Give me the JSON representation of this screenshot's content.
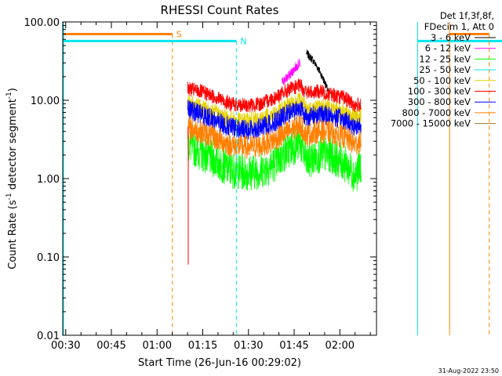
{
  "colors": {
    "background": "#ffffff",
    "axis": "#000000",
    "s_marker": "#ff7f00",
    "n_marker": "#00e5ee"
  },
  "chart_data": {
    "type": "line",
    "title": "RHESSI Count Rates",
    "xlabel": "Start Time (26-Jun-16 00:29:02)",
    "ylabel_main": "Count Rate (s",
    "ylabel_sup": "-1",
    "ylabel_tail": " detector segment",
    "ylabel_sup2": "-1",
    "ylabel_end": ")",
    "y_scale": "log",
    "ylim": [
      0.01,
      100.0
    ],
    "xlim": [
      "00:29:02",
      "02:12:00"
    ],
    "x_ticks": [
      "00:30",
      "00:45",
      "01:00",
      "01:15",
      "01:30",
      "01:45",
      "02:00"
    ],
    "y_ticks": [
      "100.00",
      "10.00",
      "1.00",
      "0.10",
      "0.01"
    ],
    "legend_header": [
      "Det 1f,3f,8f,",
      "FDecim 1, Att 0"
    ],
    "legend_placement": "outside-right",
    "series": [
      {
        "name": "3 - 6 keV",
        "color": "#000000",
        "x": [
          80.0,
          82.0,
          84.0,
          86.0,
          87.5
        ],
        "y": [
          40.0,
          33.0,
          25.0,
          17.0,
          12.0
        ]
      },
      {
        "name": "6 - 12 keV",
        "color": "#ff00ff",
        "x": [
          72.0,
          74.0,
          76.0,
          77.0,
          78.0
        ],
        "y": [
          17.0,
          20.0,
          25.0,
          28.0,
          30.0
        ]
      },
      {
        "name": "12 - 25 keV",
        "color": "#00ff00",
        "x": [
          41.0,
          45.0,
          50.0,
          55.0,
          60.0,
          65.0,
          70.0,
          74.0,
          78.0,
          80.0,
          84.0,
          88.0,
          93.0,
          96.0,
          98.0
        ],
        "y": [
          2.8,
          2.2,
          1.7,
          1.3,
          1.2,
          1.25,
          1.6,
          2.3,
          2.9,
          1.6,
          2.0,
          2.0,
          1.5,
          1.1,
          1.5
        ]
      },
      {
        "name": "25 - 50 keV",
        "color": "#00e5ee",
        "x": [],
        "y": []
      },
      {
        "name": "50 - 100 keV",
        "color": "#e6d000",
        "x": [
          41.0,
          45.0,
          50.0,
          55.0,
          60.0,
          65.0,
          70.0,
          74.0,
          78.0,
          80.0,
          84.0,
          88.0,
          93.0,
          96.0,
          98.0
        ],
        "y": [
          9.0,
          8.0,
          6.8,
          5.6,
          5.3,
          5.6,
          6.8,
          8.5,
          10.0,
          7.5,
          8.2,
          8.0,
          7.0,
          6.0,
          6.5
        ]
      },
      {
        "name": "100 - 300 keV",
        "color": "#ff0000",
        "x": [
          41.0,
          45.0,
          50.0,
          55.0,
          60.0,
          65.0,
          70.0,
          74.0,
          78.0,
          80.0,
          84.0,
          88.0,
          93.0,
          96.0,
          98.0
        ],
        "y": [
          14.0,
          13.0,
          11.0,
          9.0,
          8.5,
          9.0,
          11.0,
          13.5,
          15.5,
          12.5,
          13.0,
          12.0,
          10.5,
          8.5,
          9.0
        ]
      },
      {
        "name": "300 - 800 keV",
        "color": "#0000ff",
        "x": [
          41.0,
          45.0,
          50.0,
          55.0,
          60.0,
          65.0,
          70.0,
          74.0,
          78.0,
          80.0,
          84.0,
          88.0,
          93.0,
          96.0,
          98.0
        ],
        "y": [
          7.5,
          6.8,
          5.5,
          4.5,
          4.2,
          4.4,
          5.4,
          6.8,
          8.0,
          6.0,
          6.6,
          6.4,
          5.5,
          4.5,
          5.0
        ]
      },
      {
        "name": "800 - 7000 keV",
        "color": "#ff7f00",
        "x": [
          41.0,
          45.0,
          50.0,
          55.0,
          60.0,
          65.0,
          70.0,
          74.0,
          78.0,
          80.0,
          84.0,
          88.0,
          93.0,
          96.0,
          98.0
        ],
        "y": [
          4.5,
          4.0,
          3.3,
          2.7,
          2.5,
          2.6,
          3.2,
          4.0,
          4.8,
          3.6,
          4.0,
          3.9,
          3.3,
          2.7,
          3.0
        ]
      },
      {
        "name": "7000 - 15000 keV",
        "color": "#a0782a",
        "x": [],
        "y": []
      }
    ],
    "markers": [
      {
        "label": "S",
        "color": "#ff7f00",
        "x": 36.0,
        "y": 70.0,
        "style": "dashed"
      },
      {
        "label": "N",
        "color": "#00e5ee",
        "x": 57.0,
        "y": 57.0,
        "style": "dashed"
      }
    ],
    "stamp": "31-Aug-2022 23:50"
  }
}
